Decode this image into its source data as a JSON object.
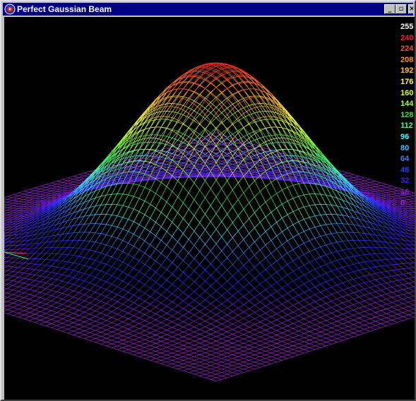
{
  "window": {
    "title": "Perfect Gaussian Beam",
    "minimize_glyph": "_",
    "maximize_glyph": "▫",
    "close_glyph": "×",
    "app_icon": "gaussian-app-icon"
  },
  "chart_data": {
    "type": "surface",
    "title": "",
    "function": "gaussian",
    "peak_value": 255,
    "colorbar": {
      "levels": [
        {
          "label": "255",
          "color": "#ffffff"
        },
        {
          "label": "240",
          "color": "#ff2020"
        },
        {
          "label": "224",
          "color": "#ff5020"
        },
        {
          "label": "208",
          "color": "#ff9020"
        },
        {
          "label": "192",
          "color": "#ffc040"
        },
        {
          "label": "176",
          "color": "#ffff40"
        },
        {
          "label": "160",
          "color": "#e0ff40"
        },
        {
          "label": "144",
          "color": "#a0ff40"
        },
        {
          "label": "128",
          "color": "#40e040"
        },
        {
          "label": "112",
          "color": "#40ff80"
        },
        {
          "label": "96",
          "color": "#40ffff"
        },
        {
          "label": "80",
          "color": "#40c0ff"
        },
        {
          "label": "64",
          "color": "#4080ff"
        },
        {
          "label": "48",
          "color": "#2040ff"
        },
        {
          "label": "32",
          "color": "#4020ff"
        },
        {
          "label": "16",
          "color": "#8020e0"
        },
        {
          "label": "0",
          "color": "#a020d0"
        }
      ]
    }
  }
}
